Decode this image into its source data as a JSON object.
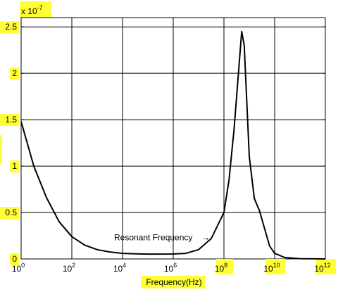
{
  "chart_data": {
    "type": "line",
    "title": "",
    "xlabel": "Frequency(Hz)",
    "ylabel": "",
    "x_scale": "log",
    "xlim": [
      1,
      1000000000000
    ],
    "ylim": [
      0,
      2.6e-07
    ],
    "y_exponent_label": "x 10",
    "y_exponent_power": "-7",
    "grid": true,
    "x_ticks": [
      {
        "value": 1,
        "base": "10",
        "exp": "0"
      },
      {
        "value": 100,
        "base": "10",
        "exp": "2"
      },
      {
        "value": 10000,
        "base": "10",
        "exp": "4"
      },
      {
        "value": 1000000,
        "base": "10",
        "exp": "6"
      },
      {
        "value": 100000000,
        "base": "10",
        "exp": "8"
      },
      {
        "value": 10000000000,
        "base": "10",
        "exp": "10"
      },
      {
        "value": 1000000000000,
        "base": "10",
        "exp": "12"
      }
    ],
    "y_ticks": [
      {
        "value": 0,
        "label": "0"
      },
      {
        "value": 5e-08,
        "label": "0.5"
      },
      {
        "value": 1e-07,
        "label": "1"
      },
      {
        "value": 1.5e-07,
        "label": "1.5"
      },
      {
        "value": 2e-07,
        "label": "2"
      },
      {
        "value": 2.5e-07,
        "label": "2.5"
      }
    ],
    "series": [
      {
        "x": [
          1,
          3.16,
          10,
          31.6,
          100,
          316,
          1000,
          3162,
          10000,
          31620,
          100000,
          316200,
          1000000,
          3162000,
          10000000,
          31620000,
          100000000,
          158500000,
          251200000,
          398100000,
          501200000,
          631000000,
          794300000,
          1000000000,
          1585000000,
          2512000000,
          3981000000,
          6310000000,
          10000000000,
          25120000000,
          100000000000,
          1000000000000
        ],
        "y": [
          1.48e-07,
          1e-07,
          6.6e-08,
          4e-08,
          2.4e-08,
          1.5e-08,
          1e-08,
          7.5e-09,
          6e-09,
          5.5e-09,
          5.2e-09,
          5.2e-09,
          5.3e-09,
          6e-09,
          1e-08,
          2.2e-08,
          5e-08,
          8.5e-08,
          1.4e-07,
          2.1e-07,
          2.45e-07,
          2.3e-07,
          1.7e-07,
          1.1e-07,
          6.5e-08,
          5.2e-08,
          3.3e-08,
          1.4e-08,
          6e-09,
          1.5e-09,
          3e-10,
          0
        ]
      }
    ],
    "annotation": {
      "text": "Resonant Frequency",
      "arrow": "→",
      "x": 100000000,
      "y": 2.3e-08
    }
  }
}
